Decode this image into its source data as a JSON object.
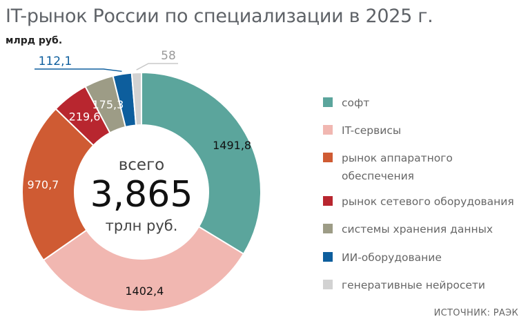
{
  "title": "IT-рынок России по специализации в 2025 г.",
  "unit": "млрд руб.",
  "source": "ИСТОЧНИК: РАЭК",
  "center": {
    "line1": "всего",
    "value": "3,865",
    "line3": "трлн руб."
  },
  "chart_data": {
    "type": "pie",
    "title": "IT-рынок России по специализации в 2025 г.",
    "unit": "млрд руб.",
    "donut": true,
    "total_label": "3,865",
    "series": [
      {
        "name": "софт",
        "value": 1491.8,
        "label": "1491,8",
        "color": "#5ba59c"
      },
      {
        "name": "IT-сервисы",
        "value": 1402.4,
        "label": "1402,4",
        "color": "#f1b7b1"
      },
      {
        "name": "рынок аппаратного обеспечения",
        "value": 970.7,
        "label": "970,7",
        "color": "#cf5b33"
      },
      {
        "name": "рынок сетевого оборудования",
        "value": 219.6,
        "label": "219,6",
        "color": "#b8262f"
      },
      {
        "name": "системы хранения данных",
        "value": 175.3,
        "label": "175,3",
        "color": "#9d9c86"
      },
      {
        "name": "ИИ-оборудование",
        "value": 112.1,
        "label": "112,1",
        "color": "#0d5e9d"
      },
      {
        "name": "генеративные нейросети",
        "value": 58,
        "label": "58",
        "color": "#d2d2d2"
      }
    ],
    "legend": [
      "софт",
      "IT-сервисы",
      "рынок аппаратного обеспечения",
      "рынок сетевого оборудования",
      "системы хранения данных",
      "ИИ-оборудование",
      "генеративные нейросети"
    ],
    "legend_placement": "right"
  }
}
